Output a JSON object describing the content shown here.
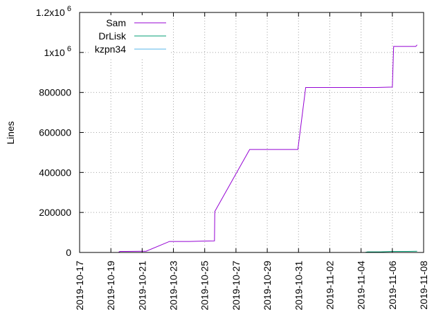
{
  "chart_data": {
    "type": "line",
    "title": "",
    "xlabel": "",
    "ylabel": "Lines",
    "x_type": "date",
    "xlim": [
      "2019-10-17",
      "2019-11-08"
    ],
    "ylim": [
      0,
      1200000
    ],
    "x_ticks": [
      "2019-10-17",
      "2019-10-19",
      "2019-10-21",
      "2019-10-23",
      "2019-10-25",
      "2019-10-27",
      "2019-10-29",
      "2019-10-31",
      "2019-11-02",
      "2019-11-04",
      "2019-11-06",
      "2019-11-08"
    ],
    "y_ticks": [
      {
        "value": 0,
        "label": "0"
      },
      {
        "value": 200000,
        "label": "200000"
      },
      {
        "value": 400000,
        "label": "400000"
      },
      {
        "value": 600000,
        "label": "600000"
      },
      {
        "value": 800000,
        "label": "800000"
      },
      {
        "value": 1000000,
        "label": "1x10",
        "exp": "6"
      },
      {
        "value": 1200000,
        "label": "1.2x10",
        "exp": "6"
      }
    ],
    "grid": true,
    "legend_position": "top-left",
    "series": [
      {
        "name": "Sam",
        "color": "#9400d3",
        "points": [
          [
            "2019-10-19 12:00",
            2000
          ],
          [
            "2019-10-19 14:00",
            5000
          ],
          [
            "2019-10-20 00:00",
            5000
          ],
          [
            "2019-10-21 00:00",
            6000
          ],
          [
            "2019-10-21 06:00",
            6000
          ],
          [
            "2019-10-22 18:00",
            55000
          ],
          [
            "2019-10-24 00:00",
            55000
          ],
          [
            "2019-10-25 00:00",
            57000
          ],
          [
            "2019-10-25 15:00",
            58000
          ],
          [
            "2019-10-25 15:30",
            205000
          ],
          [
            "2019-10-27 21:00",
            515000
          ],
          [
            "2019-10-30 00:00",
            515000
          ],
          [
            "2019-10-30 23:00",
            515000
          ],
          [
            "2019-10-31 11:00",
            825000
          ],
          [
            "2019-11-03 00:00",
            825000
          ],
          [
            "2019-11-05 00:00",
            825000
          ],
          [
            "2019-11-06 00:00",
            827000
          ],
          [
            "2019-11-06 02:00",
            1030000
          ],
          [
            "2019-11-07 12:00",
            1030000
          ],
          [
            "2019-11-07 14:00",
            1038000
          ]
        ]
      },
      {
        "name": "DrLisk",
        "color": "#009e73",
        "points": [
          [
            "2019-11-04 06:00",
            0
          ],
          [
            "2019-11-04 10:00",
            3000
          ],
          [
            "2019-11-05 06:00",
            3000
          ],
          [
            "2019-11-06 00:00",
            5000
          ],
          [
            "2019-11-07 00:00",
            5000
          ],
          [
            "2019-11-07 14:00",
            6000
          ]
        ]
      },
      {
        "name": "kzpn34",
        "color": "#56b4e9",
        "points": []
      }
    ]
  }
}
